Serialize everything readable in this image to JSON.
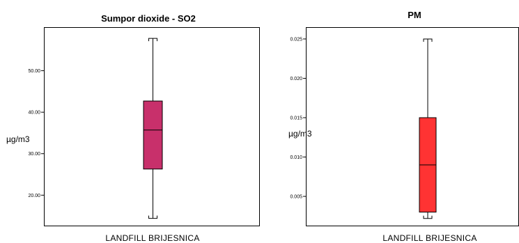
{
  "chart_data": [
    {
      "type": "box",
      "title": "Sumpor dioxide - SO2",
      "ylabel": "µg/m3",
      "ylim": [
        12.5,
        60.5
      ],
      "yticks": [
        20,
        30,
        40,
        50
      ],
      "ytick_labels": [
        "20.00",
        "30.00",
        "40.00",
        "50.00"
      ],
      "categories": [
        "LANDFILL  BRIJESNICA"
      ],
      "box": {
        "min": 14.4,
        "q1": 26.3,
        "median": 35.7,
        "q3": 42.7,
        "max": 57.8
      },
      "color": "#c8306b",
      "grid": false
    },
    {
      "type": "box",
      "title": "PM",
      "ylabel": "µg/m3",
      "ylim": [
        0.0012,
        0.0265
      ],
      "yticks": [
        0.005,
        0.01,
        0.015,
        0.02,
        0.025
      ],
      "ytick_labels": [
        "0.005",
        "0.010",
        "0.015",
        "0.020",
        "0.025"
      ],
      "categories": [
        "LANDFILL  BRIJESNICA"
      ],
      "box": {
        "min": 0.0022,
        "q1": 0.003,
        "median": 0.009,
        "q3": 0.015,
        "max": 0.025
      },
      "color": "#ff3333",
      "grid": false
    }
  ]
}
